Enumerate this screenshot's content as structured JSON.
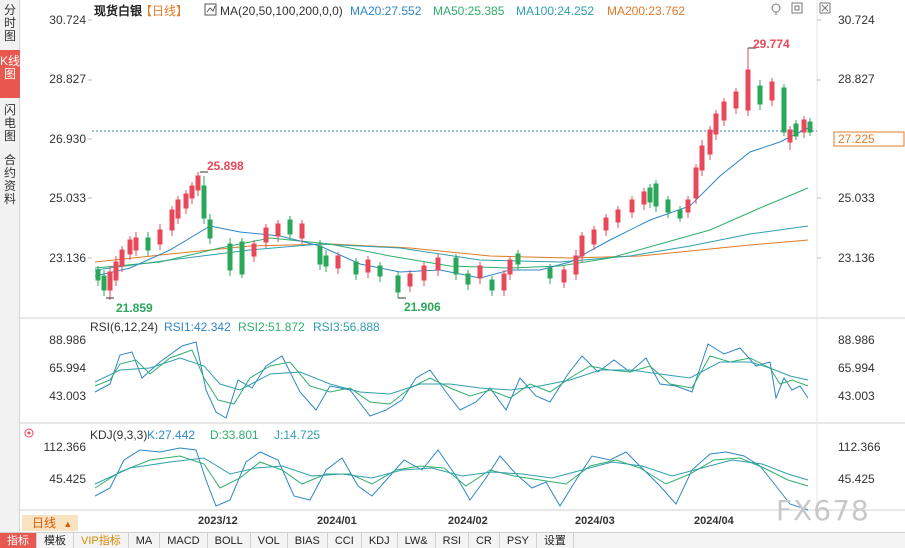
{
  "sidebar": {
    "tabs": [
      {
        "label": "分时图",
        "active": false
      },
      {
        "label": "K线图",
        "active": true
      },
      {
        "label": "闪电图",
        "active": false
      },
      {
        "label": "合约资料",
        "active": false
      }
    ]
  },
  "header": {
    "title": "现货白银",
    "period": "【日线】",
    "ma_params": "MA(20,50,100,200,0,0)",
    "ma20": "MA20:27.552",
    "ma50": "MA50:25.385",
    "ma100": "MA100:24.252",
    "ma200": "MA200:23.762"
  },
  "window_icons": [
    "pin-icon",
    "window-restore-icon",
    "close-icon"
  ],
  "price_axis": [
    "30.724",
    "28.827",
    "26.930",
    "25.033",
    "23.136"
  ],
  "current_price": "27.225",
  "annotations": {
    "high": "29.774",
    "high2": "25.898",
    "low": "21.859",
    "low2": "21.906"
  },
  "rsi": {
    "params": "RSI(6,12,24)",
    "rsi1": "RSI1:42.342",
    "rsi2": "RSI2:51.872",
    "rsi3": "RSI3:56.888",
    "axis": [
      "88.986",
      "65.994",
      "43.003"
    ]
  },
  "kdj": {
    "params": "KDJ(9,3,3)",
    "k": "K:27.442",
    "d": "D:33.801",
    "j": "J:14.725",
    "axis": [
      "112.366",
      "45.425"
    ]
  },
  "dates": [
    "2023/12",
    "2024/01",
    "2024/02",
    "2024/03",
    "2024/04"
  ],
  "period_selector": "日线",
  "bottom_tabs": [
    "指标",
    "模板",
    "VIP指标",
    "MA",
    "MACD",
    "BOLL",
    "VOL",
    "BIAS",
    "CCI",
    "KDJ",
    "LW&",
    "RSI",
    "CR",
    "PSY",
    "设置"
  ],
  "watermark": "FX678",
  "colors": {
    "up": "#e8485a",
    "down": "#2aa85a",
    "ma20": "#2f86c8",
    "ma50": "#2fae6a",
    "ma100": "#2f9fae",
    "ma200": "#e07b2a",
    "rsi1": "#2f86c8",
    "rsi2": "#2fae6a",
    "rsi3": "#2f9fae",
    "label_red": "#e8485a",
    "label_green": "#2aa85a"
  }
}
